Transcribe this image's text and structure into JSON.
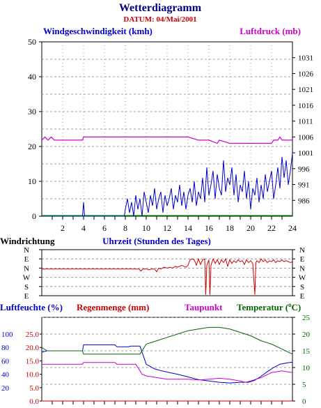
{
  "title": "Wetterdiagramm",
  "subtitle": "DATUM: 04/Mai/2001",
  "colors": {
    "title": "#000080",
    "subtitle": "#cc0000",
    "wind": "#0000cc",
    "pressure": "#cc00cc",
    "direction": "#cc0000",
    "humidity": "#0000cc",
    "rain": "#cc0000",
    "dewpoint": "#cc00cc",
    "temperature": "#006600",
    "zero_line": "#00aa00",
    "grid": "#808080"
  },
  "chart_data": [
    {
      "type": "line",
      "name": "wind-pressure",
      "labels": {
        "left": "Windgeschwindigkeit (kmh)",
        "right": "Luftdruck (mb)",
        "x": "Uhrzeit (Stunden des Tages)"
      },
      "x_ticks": [
        2,
        4,
        6,
        8,
        10,
        12,
        14,
        16,
        18,
        20,
        22,
        24
      ],
      "xlim": [
        0,
        24
      ],
      "y_left": {
        "ylim": [
          0,
          50
        ],
        "ticks": [
          0,
          10,
          20,
          30,
          40,
          50
        ]
      },
      "y_right": {
        "ylim": [
          981,
          1036
        ],
        "ticks": [
          986,
          991,
          996,
          1001,
          1006,
          1011,
          1016,
          1021,
          1026,
          1031
        ]
      },
      "grid": true,
      "wind_speed": {
        "x": [
          0,
          3.9,
          4.0,
          4.1,
          7.9,
          8.0,
          8.2,
          8.4,
          8.6,
          8.8,
          9.0,
          9.2,
          9.4,
          9.6,
          9.8,
          10.0,
          10.2,
          10.4,
          10.6,
          10.8,
          11.0,
          11.2,
          11.4,
          11.6,
          11.8,
          12.0,
          12.2,
          12.4,
          12.6,
          12.8,
          13.0,
          13.2,
          13.4,
          13.6,
          13.8,
          14.0,
          14.2,
          14.4,
          14.6,
          14.8,
          15.0,
          15.2,
          15.4,
          15.6,
          15.8,
          16.0,
          16.2,
          16.4,
          16.6,
          16.8,
          17.0,
          17.2,
          17.4,
          17.6,
          17.8,
          18.0,
          18.2,
          18.4,
          18.6,
          18.8,
          19.0,
          19.2,
          19.4,
          19.6,
          19.8,
          20.0,
          20.2,
          20.4,
          20.6,
          20.8,
          21.0,
          21.2,
          21.4,
          21.6,
          21.8,
          22.0,
          22.2,
          22.4,
          22.6,
          22.8,
          23.0,
          23.2,
          23.4,
          23.6,
          23.8,
          24.0
        ],
        "values": [
          0,
          0,
          4,
          0,
          0,
          2,
          5,
          1,
          4,
          0,
          6,
          2,
          5,
          0,
          7,
          4,
          1,
          6,
          3,
          8,
          2,
          5,
          7,
          1,
          6,
          3,
          5,
          8,
          2,
          6,
          4,
          9,
          3,
          7,
          2,
          6,
          8,
          4,
          10,
          3,
          7,
          5,
          11,
          4,
          14,
          6,
          9,
          13,
          5,
          12,
          8,
          6,
          16,
          7,
          11,
          9,
          14,
          6,
          12,
          4,
          9,
          7,
          13,
          5,
          10,
          2,
          8,
          6,
          11,
          4,
          9,
          5,
          12,
          7,
          10,
          13,
          5,
          9,
          14,
          8,
          17,
          11,
          16,
          9,
          13,
          18
        ]
      },
      "pressure": {
        "x": [
          0,
          0.3,
          0.6,
          0.9,
          1.2,
          3.9,
          4.0,
          14.0,
          15.0,
          15.2,
          16.0,
          16.8,
          17.0,
          18.0,
          18.2,
          19.0,
          22.0,
          22.2,
          22.6,
          22.8,
          23.0,
          23.4,
          24.0
        ],
        "values": [
          1005,
          1006,
          1005,
          1006,
          1005,
          1005,
          1006,
          1006,
          1005,
          1005,
          1005,
          1004,
          1005,
          1004,
          1004,
          1004,
          1004,
          1005,
          1005,
          1006,
          1005,
          1005,
          1005
        ]
      }
    },
    {
      "type": "line",
      "name": "wind-direction",
      "label": "Windrichtung",
      "categories": [
        "N",
        "E",
        "N",
        "W",
        "S",
        "E"
      ],
      "ylim": [
        0,
        5
      ],
      "x": [
        0,
        9.3,
        9.5,
        9.7,
        10.0,
        10.3,
        10.5,
        10.8,
        11.0,
        11.2,
        11.4,
        11.7,
        12.0,
        12.3,
        12.5,
        12.8,
        13.0,
        13.2,
        13.4,
        13.6,
        13.8,
        14.0,
        14.2,
        14.4,
        14.6,
        14.8,
        15.0,
        15.2,
        15.4,
        15.6,
        15.7,
        15.8,
        16.0,
        16.1,
        16.2,
        16.4,
        16.6,
        16.8,
        17.0,
        17.2,
        17.4,
        17.6,
        17.8,
        18.0,
        18.2,
        18.4,
        18.6,
        18.8,
        19.0,
        19.2,
        19.4,
        19.6,
        19.8,
        20.0,
        20.2,
        20.4,
        20.5,
        20.6,
        20.8,
        21.0,
        21.2,
        21.4,
        21.6,
        21.8,
        22.0,
        22.2,
        22.4,
        22.6,
        22.8,
        23.0,
        23.2,
        23.4,
        23.6,
        23.8,
        24.0
      ],
      "values": [
        2.9,
        2.9,
        2.7,
        2.9,
        2.9,
        2.8,
        2.9,
        2.9,
        2.6,
        3.0,
        2.9,
        3.1,
        3.0,
        3.1,
        3.0,
        3.2,
        3.1,
        3.2,
        3.3,
        3.2,
        3.1,
        3.3,
        3.9,
        4.0,
        3.9,
        3.3,
        4.0,
        3.4,
        3.9,
        4.0,
        0.1,
        3.3,
        3.9,
        0.1,
        3.3,
        4.0,
        3.5,
        3.9,
        3.4,
        3.9,
        3.6,
        4.0,
        3.2,
        3.9,
        3.5,
        3.8,
        3.6,
        3.9,
        3.7,
        3.8,
        3.4,
        3.9,
        3.6,
        3.8,
        3.5,
        0.1,
        3.6,
        3.8,
        3.6,
        4.0,
        3.7,
        3.9,
        3.6,
        3.8,
        3.7,
        3.9,
        3.6,
        3.8,
        3.7,
        3.9,
        3.7,
        3.8,
        3.7,
        3.6,
        3.7
      ]
    },
    {
      "type": "line",
      "name": "humidity-rain-dewpoint-temperature",
      "labels": {
        "humidity": "Luftfeuchte (%)",
        "rain": "Regenmenge (mm)",
        "dewpoint": "Taupunkt",
        "temperature": "Temperatur (",
        "temperature_unit": "o",
        "temperature_suffix": "C)"
      },
      "axis_humidity": {
        "ylim": [
          0,
          125
        ],
        "ticks": [
          20,
          40,
          60,
          80,
          100
        ]
      },
      "axis_rain": {
        "ylim": [
          0,
          31.25
        ],
        "ticks": [
          "0.0",
          "5.0",
          "10.0",
          "15.0",
          "20.0",
          "25.0"
        ]
      },
      "axis_temp": {
        "ylim": [
          0,
          25
        ],
        "ticks": [
          0,
          5,
          10,
          15,
          20,
          25
        ]
      },
      "humidity": {
        "x": [
          0,
          0.5,
          1.0,
          3.9,
          4.0,
          7.0,
          7.2,
          8.3,
          8.5,
          9.0,
          9.4,
          10.0,
          10.8,
          11.5,
          12.4,
          13.0,
          14.0,
          15.0,
          16.0,
          17.0,
          18.0,
          19.0,
          19.8,
          20.4,
          21.0,
          21.6,
          22.2,
          22.8,
          23.5,
          24.0
        ],
        "values": [
          73,
          75,
          75,
          75,
          84,
          84,
          81,
          81,
          82,
          82,
          82,
          55,
          48,
          45,
          42,
          40,
          36,
          32,
          30,
          28,
          27,
          28,
          28,
          31,
          37,
          44,
          50,
          55,
          57,
          58
        ]
      },
      "temperature": {
        "x": [
          0,
          0.5,
          1.0,
          3.9,
          4.0,
          9.0,
          9.4,
          10.0,
          11.0,
          12.0,
          13.0,
          14.0,
          15.0,
          16.0,
          17.0,
          18.0,
          19.0,
          20.0,
          21.0,
          22.0,
          23.0,
          24.0
        ],
        "values": [
          16,
          15,
          15,
          15,
          14,
          14,
          14,
          17,
          18,
          19,
          20,
          21,
          21.5,
          22,
          22,
          21.5,
          20.5,
          19.5,
          18,
          17,
          15.5,
          14
        ]
      },
      "dewpoint": {
        "x": [
          0,
          0.5,
          1.0,
          3.9,
          4.0,
          7.0,
          7.2,
          9.0,
          9.4,
          9.6,
          10.0,
          11.0,
          12.0,
          13.0,
          14.0,
          15.0,
          16.0,
          17.0,
          18.0,
          19.0,
          19.5,
          20.0,
          21.0,
          22.0,
          23.0,
          24.0
        ],
        "values": [
          11,
          11,
          11,
          11,
          11.5,
          11.5,
          11,
          11,
          9,
          8,
          7.5,
          7,
          6.5,
          6.5,
          6.5,
          6.3,
          6.5,
          6.8,
          6.5,
          6,
          5.6,
          6,
          7,
          8.5,
          9,
          8.5
        ]
      },
      "rain": {
        "x": [
          0,
          24
        ],
        "values": [
          0,
          0
        ]
      }
    }
  ]
}
